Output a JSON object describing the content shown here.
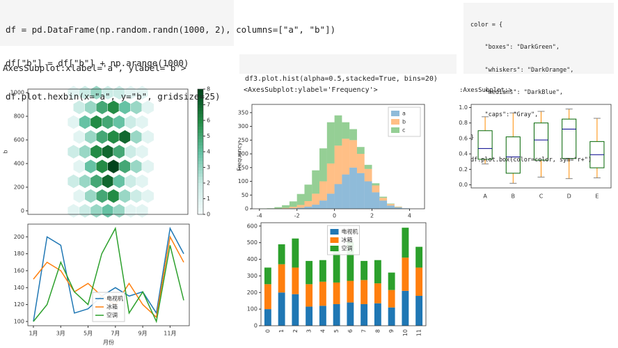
{
  "code_cells": [
    {
      "lines": [
        "df = pd.DataFrame(np.random.randn(1000, 2), columns=[\"a\", \"b\"])",
        "df[\"b\"] = df[\"b\"] + np.arange(1000)",
        "df.plot.hexbin(x=\"a\", y=\"b\", gridsize=25)"
      ],
      "output": "AxesSubplot:xlabel='a', ylabel='b'>"
    },
    {
      "lines": [
        "df3.plot.hist(alpha=0.5,stacked=True, bins=20)"
      ],
      "output": "<AxesSubplot:ylabel='Frequency'>"
    },
    {
      "lines": [
        "color = {",
        "    \"boxes\": \"DarkGreen\",",
        "    \"whiskers\": \"DarkOrange\",",
        "    \"medians\": \"DarkBlue\",",
        "    \"caps\": \"Gray\",",
        "}",
        "df.plot.box(color=color, sym=\"r+\")"
      ],
      "output": ":AxesSubplot:>"
    }
  ],
  "chart_data": [
    {
      "type": "hexbin",
      "ylabel": "b",
      "x": [
        -1.5,
        -1,
        -0.5,
        0,
        0.5,
        1,
        1.5,
        -1.25,
        -0.75,
        -0.25,
        0.25,
        0.75,
        1.25,
        1.75,
        -1.5,
        -1,
        -0.5,
        0,
        0.5,
        1,
        1.5,
        -1.25,
        -0.75,
        -0.25,
        0.25,
        0.75,
        1.25,
        1.75,
        -1.5,
        -1,
        -0.5,
        0,
        0.5,
        1,
        1.5,
        -1.25,
        -0.75,
        -0.25,
        0.25,
        0.75,
        1.25,
        1.75,
        -1.5,
        -1,
        -0.5,
        0,
        0.5,
        1,
        1.5,
        -1.25,
        -0.75,
        -0.25,
        0.25,
        0.75,
        1.25,
        1.75,
        -1.5,
        -1,
        -0.5,
        0,
        0.5,
        1,
        1.5
      ],
      "y": [
        0,
        0,
        0,
        0,
        0,
        0,
        0,
        125,
        125,
        125,
        125,
        125,
        125,
        125,
        250,
        250,
        250,
        250,
        250,
        250,
        250,
        375,
        375,
        375,
        375,
        375,
        375,
        375,
        500,
        500,
        500,
        500,
        500,
        500,
        500,
        625,
        625,
        625,
        625,
        625,
        625,
        625,
        750,
        750,
        750,
        750,
        750,
        750,
        750,
        875,
        875,
        875,
        875,
        875,
        875,
        875,
        1000,
        1000,
        1000,
        1000,
        1000,
        1000,
        1000
      ],
      "values": [
        1,
        2,
        3,
        4,
        3,
        1,
        1,
        1,
        3,
        5,
        6,
        3,
        2,
        1,
        2,
        3,
        5,
        7,
        4,
        2,
        1,
        1,
        4,
        6,
        8,
        5,
        3,
        1,
        2,
        3,
        6,
        7,
        5,
        2,
        1,
        1,
        3,
        5,
        6,
        7,
        3,
        1,
        1,
        4,
        6,
        5,
        4,
        2,
        1,
        2,
        3,
        5,
        6,
        4,
        3,
        1,
        1,
        2,
        3,
        2,
        2,
        1,
        1
      ],
      "xlim": [
        -3.5,
        3.5
      ],
      "ylim": [
        -30,
        1030
      ],
      "yticks": [
        0,
        200,
        400,
        600,
        800,
        1000
      ],
      "clim": [
        0,
        8
      ],
      "cticks": [
        0,
        1,
        2,
        3,
        4,
        5,
        6,
        7,
        8
      ]
    },
    {
      "type": "histogram",
      "ylabel": "Frequency",
      "stacked": true,
      "alpha": 0.5,
      "legend": "upper right",
      "bins": [
        -4,
        -3.6,
        -3.2,
        -2.8,
        -2.4,
        -2,
        -1.6,
        -1.2,
        -0.8,
        -0.4,
        0,
        0.4,
        0.8,
        1.2,
        1.6,
        2,
        2.4,
        2.8,
        3.2,
        3.6,
        4
      ],
      "series": [
        {
          "name": "a",
          "color": "#1f77b4",
          "values": [
            0,
            0,
            0,
            1,
            2,
            4,
            8,
            15,
            30,
            55,
            90,
            125,
            150,
            130,
            100,
            60,
            30,
            12,
            5,
            2
          ]
        },
        {
          "name": "b",
          "color": "#ff7f0e",
          "values": [
            0,
            0,
            1,
            2,
            5,
            10,
            20,
            40,
            70,
            110,
            140,
            130,
            100,
            70,
            45,
            25,
            10,
            5,
            2,
            0
          ]
        },
        {
          "name": "c",
          "color": "#2ca02c",
          "values": [
            1,
            2,
            5,
            10,
            20,
            40,
            60,
            85,
            120,
            150,
            110,
            60,
            40,
            25,
            15,
            8,
            4,
            2,
            1,
            0
          ]
        }
      ],
      "xlim": [
        -4.4,
        4.8
      ],
      "xticks": [
        -4,
        -2,
        0,
        2,
        4
      ],
      "ylim": [
        0,
        380
      ],
      "yticks": [
        0,
        50,
        100,
        150,
        200,
        250,
        300,
        350
      ]
    },
    {
      "type": "box",
      "categories": [
        "A",
        "B",
        "C",
        "D",
        "E"
      ],
      "colors": {
        "boxes": "darkgreen",
        "whiskers": "darkorange",
        "medians": "darkblue",
        "caps": "gray"
      },
      "boxes": [
        {
          "whislo": 0.27,
          "q1": 0.33,
          "med": 0.47,
          "q3": 0.7,
          "whishi": 0.88
        },
        {
          "whislo": 0.02,
          "q1": 0.15,
          "med": 0.36,
          "q3": 0.62,
          "whishi": 0.93
        },
        {
          "whislo": 0.1,
          "q1": 0.32,
          "med": 0.58,
          "q3": 0.8,
          "whishi": 0.95
        },
        {
          "whislo": 0.08,
          "q1": 0.34,
          "med": 0.72,
          "q3": 0.85,
          "whishi": 0.98
        },
        {
          "whislo": 0.09,
          "q1": 0.22,
          "med": 0.39,
          "q3": 0.56,
          "whishi": 0.86
        }
      ],
      "ylim": [
        -0.04,
        1.04
      ],
      "yticks": [
        {
          "value": 0,
          "label": "0.0"
        },
        0.2,
        0.4,
        0.6,
        0.8,
        {
          "value": 1,
          "label": "1.0"
        }
      ]
    },
    {
      "type": "line",
      "xlabel": "月份",
      "legend": "lower center",
      "categories": [
        "1月",
        null,
        "3月",
        null,
        "5月",
        null,
        "7月",
        null,
        "9月",
        null,
        "11月",
        null
      ],
      "series": [
        {
          "name": "电视机",
          "color": "#1f77b4",
          "values": [
            100,
            200,
            190,
            110,
            115,
            130,
            140,
            130,
            135,
            110,
            210,
            180
          ]
        },
        {
          "name": "冰箱",
          "color": "#ff7f0e",
          "values": [
            150,
            170,
            160,
            135,
            145,
            130,
            120,
            145,
            120,
            105,
            200,
            170
          ]
        },
        {
          "name": "空调",
          "color": "#2ca02c",
          "values": [
            100,
            120,
            170,
            135,
            120,
            180,
            210,
            110,
            135,
            100,
            190,
            125
          ]
        }
      ],
      "ylim": [
        95,
        215
      ],
      "yticks": [
        100,
        120,
        140,
        160,
        180,
        200
      ]
    },
    {
      "type": "bar",
      "stacked": true,
      "legend": "upper center",
      "categories": [
        "0",
        "1",
        "2",
        "3",
        "4",
        "5",
        "6",
        "7",
        "8",
        "9",
        "10",
        "11"
      ],
      "series": [
        {
          "name": "电视机",
          "color": "#1f77b4",
          "values": [
            100,
            200,
            190,
            115,
            120,
            130,
            140,
            130,
            135,
            110,
            210,
            180
          ]
        },
        {
          "name": "冰箱",
          "color": "#ff7f0e",
          "values": [
            150,
            170,
            160,
            135,
            145,
            130,
            130,
            145,
            120,
            105,
            200,
            170
          ]
        },
        {
          "name": "空调",
          "color": "#2ca02c",
          "values": [
            100,
            120,
            175,
            140,
            130,
            200,
            235,
            115,
            140,
            105,
            180,
            125
          ]
        }
      ],
      "ylim": [
        0,
        620
      ],
      "yticks": [
        0,
        100,
        200,
        300,
        400,
        500,
        600
      ]
    }
  ]
}
